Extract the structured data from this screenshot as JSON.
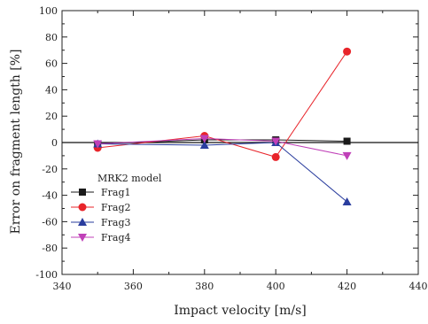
{
  "chart_data": {
    "type": "line",
    "xlabel": "Impact velocity [m/s]",
    "ylabel": "Error on fragment length [%]",
    "xlim": [
      340,
      440
    ],
    "ylim": [
      -100,
      100
    ],
    "xticks": [
      340,
      360,
      380,
      400,
      420,
      440
    ],
    "yticks": [
      -100,
      -80,
      -60,
      -40,
      -20,
      0,
      20,
      40,
      60,
      80,
      100
    ],
    "x": [
      350,
      380,
      400,
      420
    ],
    "zero_line": true,
    "grid": false,
    "legend": {
      "title": "MRK2 model",
      "placement": "lower-left"
    },
    "series": [
      {
        "name": "Frag1",
        "color": "#1a1a1a",
        "marker": "square",
        "values": [
          -1,
          2,
          2,
          1
        ]
      },
      {
        "name": "Frag2",
        "color": "#e8242a",
        "marker": "circle",
        "values": [
          -4,
          5,
          -11,
          69
        ]
      },
      {
        "name": "Frag3",
        "color": "#2a3d9e",
        "marker": "triangle-up",
        "values": [
          -1,
          -2,
          0,
          -45
        ]
      },
      {
        "name": "Frag4",
        "color": "#c040b8",
        "marker": "triangle-down",
        "values": [
          -1,
          3,
          1,
          -10
        ]
      }
    ]
  }
}
